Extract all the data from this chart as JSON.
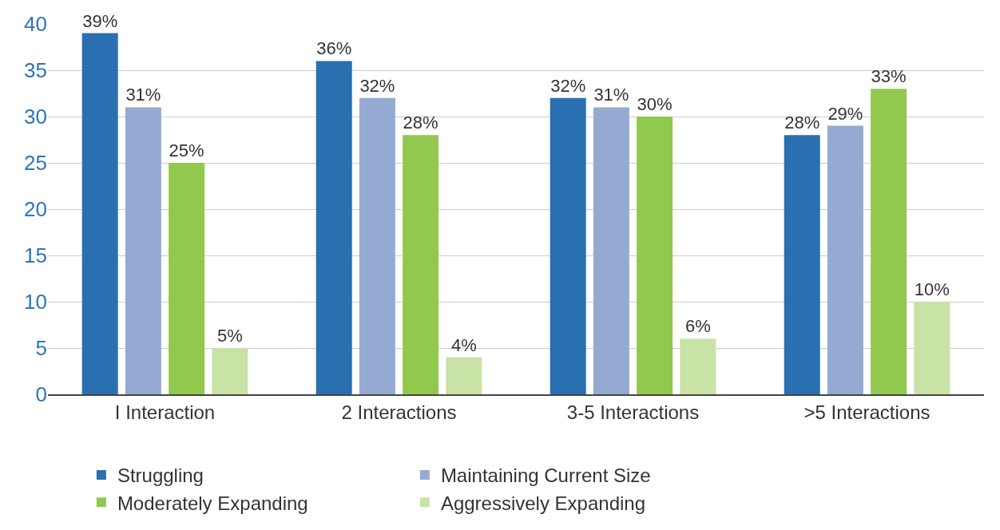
{
  "chart_data": {
    "type": "bar",
    "categories": [
      "I Interaction",
      "2 Interactions",
      "3-5 Interactions",
      ">5 Interactions"
    ],
    "series": [
      {
        "name": "Struggling",
        "color": "#2a6faf",
        "values": [
          39,
          36,
          32,
          28
        ],
        "value_labels": [
          "39%",
          "36%",
          "32%",
          "28%"
        ]
      },
      {
        "name": "Maintaining Current Size",
        "color": "#95aad3",
        "values": [
          31,
          32,
          31,
          29
        ],
        "value_labels": [
          "31%",
          "32%",
          "31%",
          "29%"
        ]
      },
      {
        "name": "Moderately Expanding",
        "color": "#92c84e",
        "values": [
          25,
          28,
          30,
          33
        ],
        "value_labels": [
          "25%",
          "28%",
          "30%",
          "33%"
        ]
      },
      {
        "name": "Aggressively Expanding",
        "color": "#c9e2a6",
        "values": [
          5,
          4,
          6,
          10
        ],
        "value_labels": [
          "5%",
          "4%",
          "6%",
          "10%"
        ]
      }
    ],
    "ylim": [
      0,
      40
    ],
    "yticks": [
      0,
      5,
      10,
      15,
      20,
      25,
      30,
      35,
      40
    ],
    "grid": "y",
    "legend": "bottom"
  }
}
